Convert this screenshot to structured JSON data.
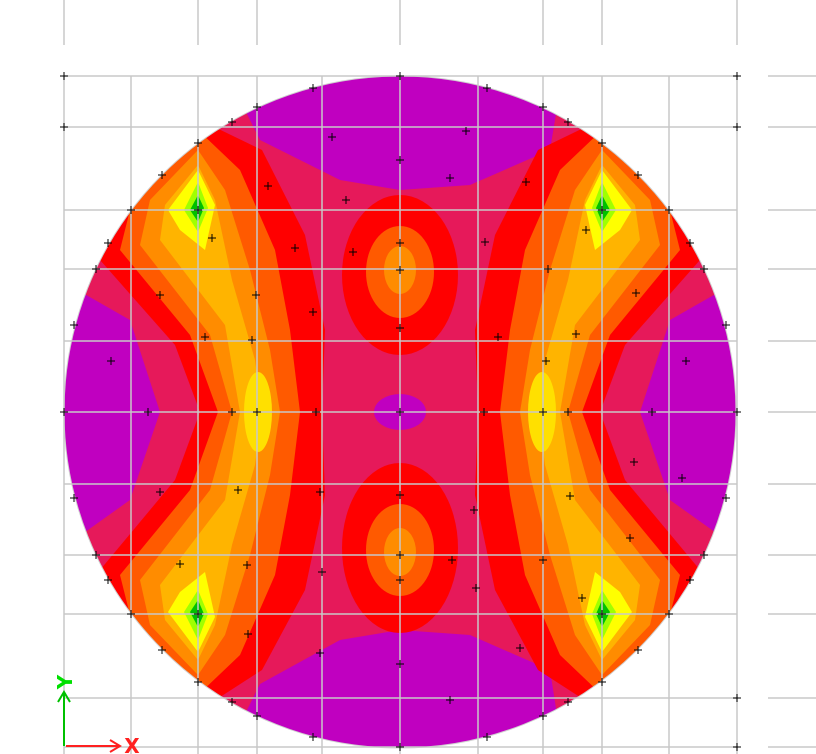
{
  "axes": {
    "x_label": "X",
    "y_label": "Y"
  }
}
